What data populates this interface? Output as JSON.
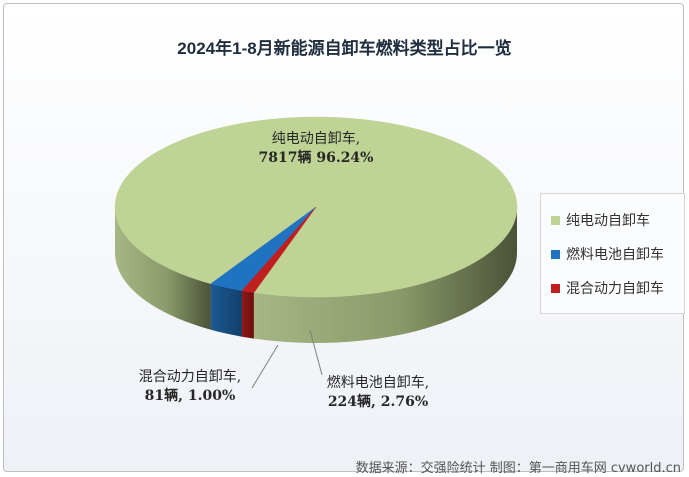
{
  "chart_data": {
    "type": "pie",
    "title": "2024年1-8月新能源自卸车燃料类型占比一览",
    "slices": [
      {
        "name": "纯电动自卸车",
        "value": 7817,
        "percent": 96.24,
        "label_line1": "纯电动自卸车,",
        "label_line2": "7817辆 96.24%",
        "color": "#bfd395",
        "side_color": "#8f9e6f"
      },
      {
        "name": "燃料电池自卸车",
        "value": 224,
        "percent": 2.76,
        "label_line1": "燃料电池自卸车,",
        "label_line2": "224辆, 2.76%",
        "color": "#1f73c0",
        "side_color": "#164d80"
      },
      {
        "name": "混合动力自卸车",
        "value": 81,
        "percent": 1.0,
        "label_line1": "混合动力自卸车,",
        "label_line2": "81辆, 1.00%",
        "color": "#c01f1f",
        "side_color": "#7d1414"
      }
    ],
    "legend": {
      "position": "right",
      "items": [
        "纯电动自卸车",
        "燃料电池自卸车",
        "混合动力自卸车"
      ]
    },
    "style": "3d"
  },
  "footer": {
    "source": "数据来源：交强险统计  制图：第一商用车网 cvworld.cn"
  }
}
